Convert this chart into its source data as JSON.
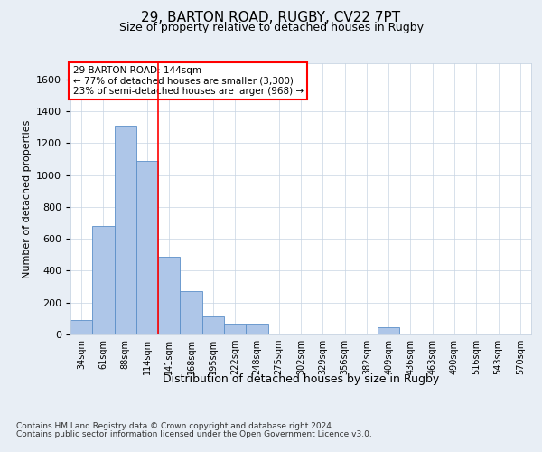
{
  "title1": "29, BARTON ROAD, RUGBY, CV22 7PT",
  "title2": "Size of property relative to detached houses in Rugby",
  "xlabel": "Distribution of detached houses by size in Rugby",
  "ylabel": "Number of detached properties",
  "categories": [
    "34sqm",
    "61sqm",
    "88sqm",
    "114sqm",
    "141sqm",
    "168sqm",
    "195sqm",
    "222sqm",
    "248sqm",
    "275sqm",
    "302sqm",
    "329sqm",
    "356sqm",
    "382sqm",
    "409sqm",
    "436sqm",
    "463sqm",
    "490sqm",
    "516sqm",
    "543sqm",
    "570sqm"
  ],
  "values": [
    90,
    680,
    1310,
    1090,
    490,
    270,
    115,
    70,
    70,
    5,
    0,
    0,
    0,
    0,
    45,
    0,
    0,
    0,
    0,
    0,
    0
  ],
  "bar_color": "#aec6e8",
  "bar_edge_color": "#5b8fc9",
  "property_line_x": 3.5,
  "annotation_lines": [
    "29 BARTON ROAD: 144sqm",
    "← 77% of detached houses are smaller (3,300)",
    "23% of semi-detached houses are larger (968) →"
  ],
  "vline_color": "red",
  "ylim": [
    0,
    1700
  ],
  "yticks": [
    0,
    200,
    400,
    600,
    800,
    1000,
    1200,
    1400,
    1600
  ],
  "footer1": "Contains HM Land Registry data © Crown copyright and database right 2024.",
  "footer2": "Contains public sector information licensed under the Open Government Licence v3.0.",
  "bg_color": "#e8eef5",
  "plot_bg_color": "#ffffff"
}
